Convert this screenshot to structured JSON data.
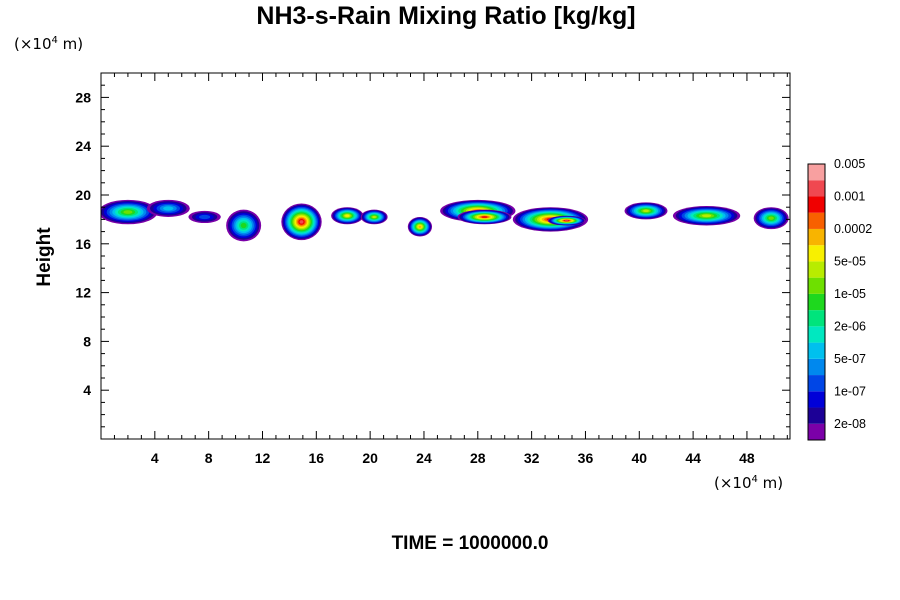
{
  "chart_data": {
    "type": "heatmap",
    "title": "NH3-s-Rain Mixing Ratio [kg/kg]",
    "xlabel": "",
    "ylabel": "Height",
    "x_unit": {
      "base": "(×10",
      "exp": "4",
      "tail": " m)"
    },
    "y_unit": {
      "base": "(×10",
      "exp": "4",
      "tail": " m)"
    },
    "xlim": [
      0,
      51.2
    ],
    "ylim": [
      0,
      30
    ],
    "xticks": [
      4,
      8,
      12,
      16,
      20,
      24,
      28,
      32,
      36,
      40,
      44,
      48
    ],
    "yticks": [
      4,
      8,
      12,
      16,
      20,
      24,
      28
    ],
    "grid": false,
    "colorbar": {
      "colors": [
        "#7b00a8",
        "#1c0096",
        "#0000d8",
        "#0046e6",
        "#0088ee",
        "#00c0ee",
        "#00e8c0",
        "#00e47c",
        "#1ed81e",
        "#6ee000",
        "#b8ec00",
        "#f8f000",
        "#f8b400",
        "#f86000",
        "#f00000",
        "#f04850",
        "#f8a0a0"
      ],
      "labels": [
        "2e-08",
        "1e-07",
        "5e-07",
        "2e-06",
        "1e-05",
        "5e-05",
        "0.0002",
        "0.001",
        "0.005"
      ]
    },
    "field_note": "layer of NH3 rain mixing ratio at ~16–20 (x10^4 m) height spanning the full domain, maxima (~1e-3) near x=14–16 and x=26–36",
    "cloud_blobs": [
      {
        "x": 2.0,
        "y": 18.6,
        "rx": 2.2,
        "ry": 1.0,
        "level": 9
      },
      {
        "x": 5.0,
        "y": 18.9,
        "rx": 1.6,
        "ry": 0.7,
        "level": 5
      },
      {
        "x": 7.7,
        "y": 18.2,
        "rx": 1.2,
        "ry": 0.5,
        "level": 3
      },
      {
        "x": 10.6,
        "y": 17.5,
        "rx": 1.3,
        "ry": 1.3,
        "level": 8
      },
      {
        "x": 14.9,
        "y": 17.8,
        "rx": 1.5,
        "ry": 1.5,
        "level": 15
      },
      {
        "x": 18.3,
        "y": 18.3,
        "rx": 1.2,
        "ry": 0.7,
        "level": 11
      },
      {
        "x": 20.3,
        "y": 18.2,
        "rx": 1.0,
        "ry": 0.6,
        "level": 10
      },
      {
        "x": 23.7,
        "y": 17.4,
        "rx": 0.9,
        "ry": 0.8,
        "level": 12
      },
      {
        "x": 28.0,
        "y": 18.7,
        "rx": 2.8,
        "ry": 0.9,
        "level": 13
      },
      {
        "x": 28.5,
        "y": 18.2,
        "rx": 2.0,
        "ry": 0.6,
        "level": 14
      },
      {
        "x": 33.4,
        "y": 18.0,
        "rx": 2.8,
        "ry": 1.0,
        "level": 14
      },
      {
        "x": 34.6,
        "y": 17.9,
        "rx": 1.4,
        "ry": 0.4,
        "level": 15
      },
      {
        "x": 40.5,
        "y": 18.7,
        "rx": 1.6,
        "ry": 0.7,
        "level": 10
      },
      {
        "x": 45.0,
        "y": 18.3,
        "rx": 2.5,
        "ry": 0.8,
        "level": 10
      },
      {
        "x": 49.8,
        "y": 18.1,
        "rx": 1.3,
        "ry": 0.9,
        "level": 9
      }
    ],
    "time_label": "TIME = 1000000.0"
  }
}
